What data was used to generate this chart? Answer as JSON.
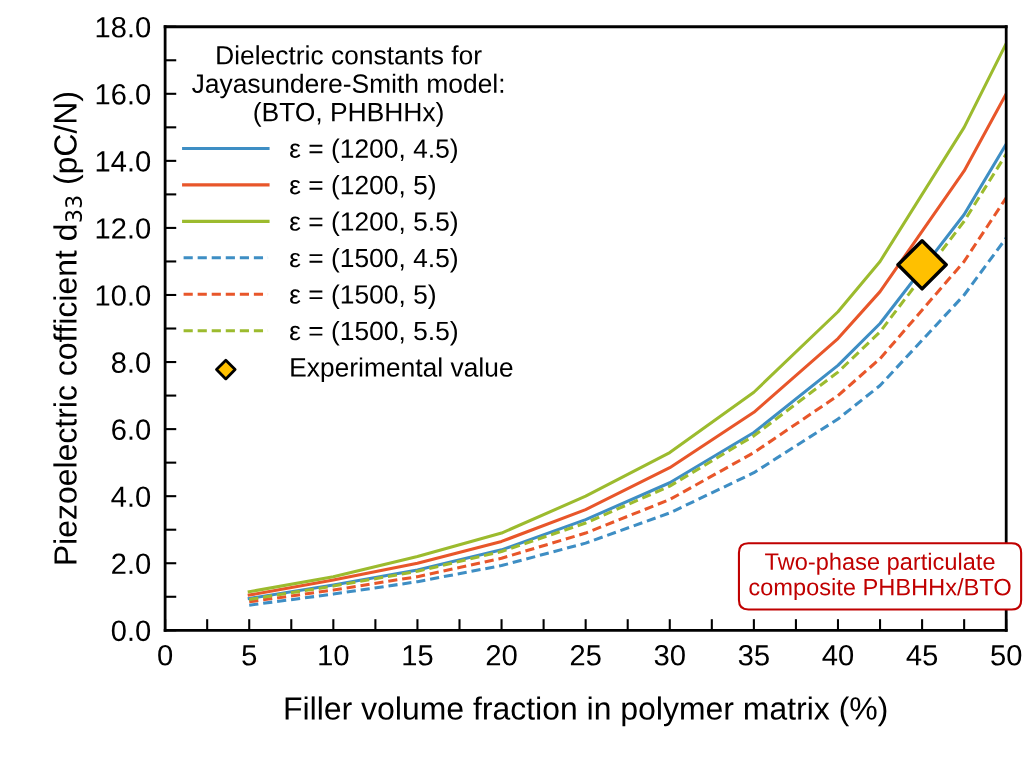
{
  "chart_data": {
    "type": "line",
    "xlabel": "Filler volume fraction in polymer matrix (%)",
    "ylabel": "Piezoelectric cofficient d$_{33}$ (pC/N)",
    "legend_title": "Dielectric constants for\nJayasundere-Smith model:\n(BTO, PHBHHx)",
    "legend": "top left",
    "x": [
      5,
      10,
      15,
      20,
      25,
      30,
      35,
      40,
      42.5,
      47.5,
      50
    ],
    "series": [
      {
        "name": "ε = (1200, 4.5)",
        "color": "#3e8ec4",
        "line_style": "solid",
        "values": [
          0.95,
          1.35,
          1.8,
          2.4,
          3.3,
          4.4,
          5.9,
          7.9,
          9.15,
          12.4,
          14.5
        ]
      },
      {
        "name": "ε = (1200, 5)",
        "color": "#e8562a",
        "line_style": "solid",
        "values": [
          1.05,
          1.5,
          2.0,
          2.65,
          3.6,
          4.85,
          6.5,
          8.7,
          10.1,
          13.7,
          16.0
        ]
      },
      {
        "name": "ε = (1200, 5.5)",
        "color": "#9cbb2e",
        "line_style": "solid",
        "values": [
          1.15,
          1.6,
          2.2,
          2.9,
          4.0,
          5.3,
          7.1,
          9.5,
          11.0,
          15.0,
          17.5
        ]
      },
      {
        "name": "ε = (1500, 4.5)",
        "color": "#3e8ec4",
        "line_style": "dashed",
        "values": [
          0.75,
          1.08,
          1.45,
          1.93,
          2.6,
          3.5,
          4.7,
          6.3,
          7.3,
          10.0,
          11.7
        ]
      },
      {
        "name": "ε = (1500, 5)",
        "color": "#e8562a",
        "line_style": "dashed",
        "values": [
          0.85,
          1.2,
          1.6,
          2.15,
          2.9,
          3.9,
          5.3,
          7.0,
          8.1,
          11.0,
          12.9
        ]
      },
      {
        "name": "ε = (1500, 5.5)",
        "color": "#9cbb2e",
        "line_style": "dashed",
        "values": [
          0.92,
          1.32,
          1.76,
          2.35,
          3.2,
          4.3,
          5.8,
          7.7,
          8.9,
          12.2,
          14.2
        ]
      },
      {
        "name": "Experimental value",
        "type": "scatter",
        "marker": "diamond",
        "color": "#ffc000",
        "x": [
          45
        ],
        "values": [
          10.9
        ]
      }
    ],
    "annotations": [
      "Two-phase particulate\ncomposite PHBHHx/BTO"
    ],
    "xlim": [
      0,
      50
    ],
    "xticks": [
      0,
      {
        "value": 2.5,
        "label": null
      },
      5,
      {
        "value": 7.5,
        "label": null
      },
      10,
      {
        "value": 12.5,
        "label": null
      },
      15,
      {
        "value": 17.5,
        "label": null
      },
      20,
      {
        "value": 22.5,
        "label": null
      },
      25,
      {
        "value": 27.5,
        "label": null
      },
      30,
      {
        "value": 32.5,
        "label": null
      },
      35,
      {
        "value": 37.5,
        "label": null
      },
      40,
      {
        "value": 42.5,
        "label": null
      },
      45,
      {
        "value": 47.5,
        "label": null
      },
      50
    ],
    "ylim": [
      0,
      18
    ],
    "yticks": [
      {
        "value": 0,
        "label": "0.0"
      },
      {
        "value": 1,
        "label": null
      },
      {
        "value": 2,
        "label": "2.0"
      },
      {
        "value": 3,
        "label": null
      },
      {
        "value": 4,
        "label": "4.0"
      },
      {
        "value": 5,
        "label": null
      },
      {
        "value": 6,
        "label": "6.0"
      },
      {
        "value": 7,
        "label": null
      },
      {
        "value": 8,
        "label": "8.0"
      },
      {
        "value": 9,
        "label": null
      },
      {
        "value": 10,
        "label": "10.0"
      },
      {
        "value": 11,
        "label": null
      },
      {
        "value": 12,
        "label": "12.0"
      },
      {
        "value": 13,
        "label": null
      },
      {
        "value": 14,
        "label": "14.0"
      },
      {
        "value": 15,
        "label": null
      },
      {
        "value": 16,
        "label": "16.0"
      },
      {
        "value": 17,
        "label": null
      },
      {
        "value": 18,
        "label": "18.0"
      }
    ],
    "grid": false
  }
}
